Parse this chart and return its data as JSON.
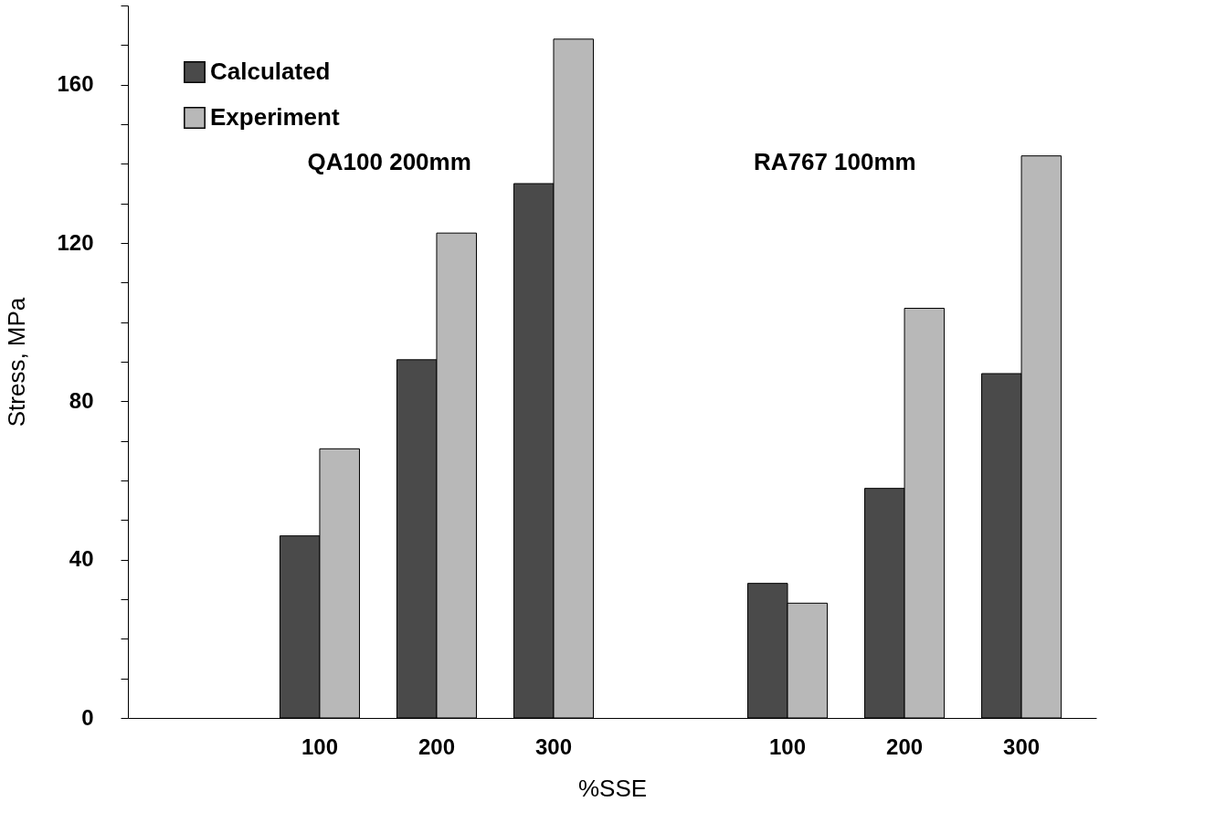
{
  "chart_data": {
    "type": "bar",
    "xlabel": "%SSE",
    "ylabel": "Stress, MPa",
    "categories": [
      null,
      "100",
      "200",
      "300",
      null,
      "100",
      "200",
      "300"
    ],
    "series": [
      {
        "name": "Calculated",
        "color": "#4a4a4a",
        "values": [
          null,
          46,
          90.5,
          135,
          null,
          34,
          58,
          87
        ]
      },
      {
        "name": "Experiment",
        "color": "#b8b8b8",
        "values": [
          null,
          68,
          122.5,
          171.5,
          null,
          29,
          103.5,
          142
        ]
      }
    ],
    "ylim": [
      0,
      180
    ],
    "yticks": [
      0,
      {
        "value": 10,
        "label": null
      },
      {
        "value": 20,
        "label": null
      },
      {
        "value": 30,
        "label": null
      },
      40,
      {
        "value": 50,
        "label": null
      },
      {
        "value": 60,
        "label": null
      },
      {
        "value": 70,
        "label": null
      },
      80,
      {
        "value": 90,
        "label": null
      },
      {
        "value": 100,
        "label": null
      },
      {
        "value": 110,
        "label": null
      },
      120,
      {
        "value": 130,
        "label": null
      },
      {
        "value": 140,
        "label": null
      },
      {
        "value": 150,
        "label": null
      },
      160,
      {
        "value": 170,
        "label": null
      },
      {
        "value": 180,
        "label": null
      }
    ],
    "annotations": [
      "QA100  200mm",
      "RA767  100mm"
    ],
    "legend": "top left",
    "grid": false
  }
}
